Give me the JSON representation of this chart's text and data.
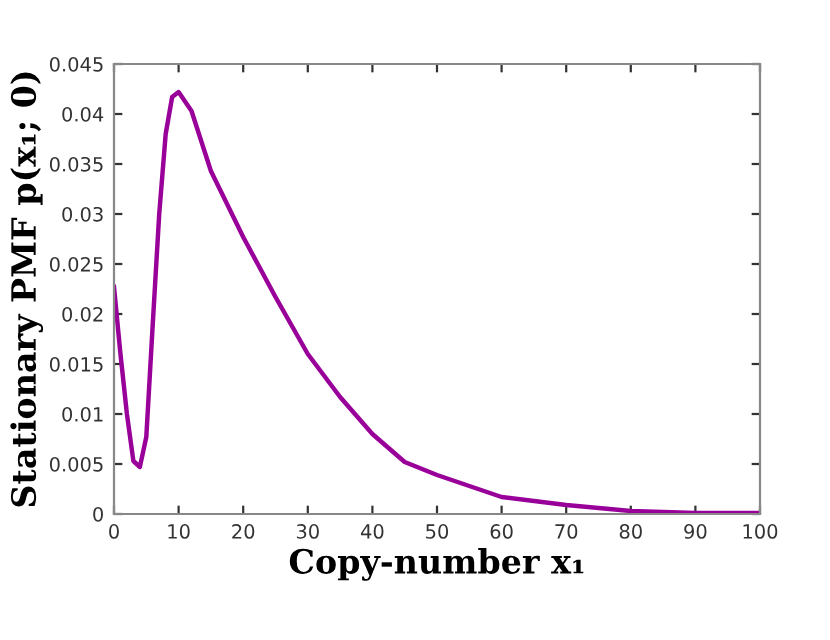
{
  "chart_data": {
    "type": "line",
    "xlabel": "Copy-number x₁",
    "ylabel": "Stationary PMF p(x₁; 0)",
    "x": [
      0,
      1,
      2,
      3,
      4,
      5,
      6,
      7,
      8,
      9,
      10,
      12,
      15,
      20,
      25,
      30,
      35,
      40,
      45,
      50,
      55,
      60,
      70,
      80,
      90,
      100
    ],
    "series": [
      {
        "color": "#990099",
        "values": [
          0.0227,
          0.016,
          0.01,
          0.0053,
          0.0047,
          0.0077,
          0.019,
          0.03,
          0.038,
          0.0417,
          0.0422,
          0.0403,
          0.0343,
          0.0277,
          0.0217,
          0.016,
          0.0117,
          0.008,
          0.0052,
          0.0039,
          0.0028,
          0.0017,
          0.0009,
          0.0003,
          0.0001,
          0.0001
        ]
      }
    ],
    "xlim": [
      0,
      100
    ],
    "ylim": [
      0,
      0.045
    ],
    "xticks": [
      0,
      10,
      20,
      30,
      40,
      50,
      60,
      70,
      80,
      90,
      100
    ],
    "yticks": [
      0,
      0.005,
      0.01,
      0.015,
      0.02,
      0.025,
      0.03,
      0.035,
      0.04,
      0.045
    ],
    "grid": false,
    "line_style": "solid",
    "marker": "none"
  }
}
